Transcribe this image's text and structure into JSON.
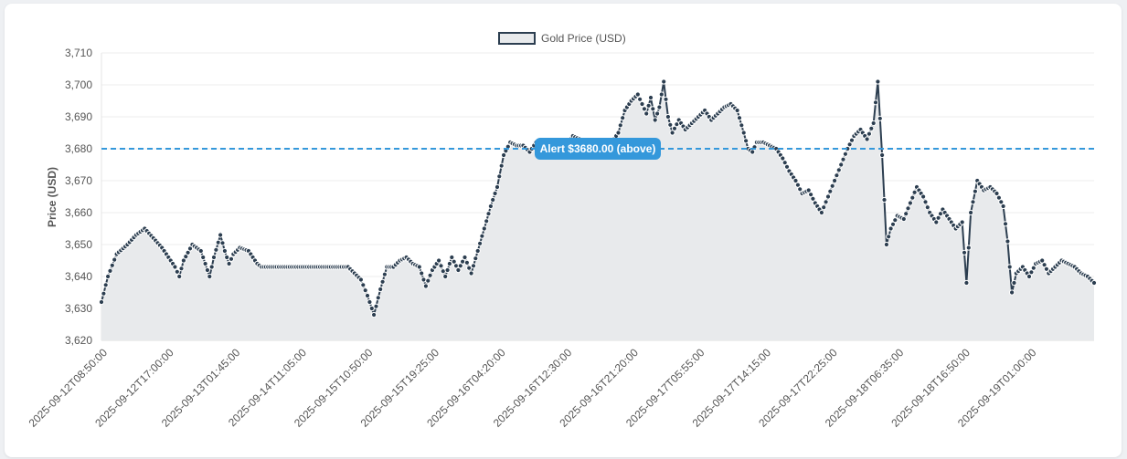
{
  "colors": {
    "line": "#2c3e50",
    "area_fill": "#e8eaec",
    "threshold": "#3498db",
    "grid": "#ececec",
    "axis_text": "#555555",
    "marker_fill": "#ffffff"
  },
  "chart_data": {
    "type": "line",
    "legend": {
      "label": "Gold Price (USD)",
      "position": "top-center"
    },
    "ylabel": "Price (USD)",
    "xlabel": "",
    "ylim": [
      3620,
      3710
    ],
    "yticks": [
      3620,
      3630,
      3640,
      3650,
      3660,
      3670,
      3680,
      3690,
      3700,
      3710
    ],
    "ytick_labels": [
      "3,620",
      "3,630",
      "3,640",
      "3,650",
      "3,660",
      "3,670",
      "3,680",
      "3,690",
      "3,700",
      "3,710"
    ],
    "xticks": [
      "2025-09-12T08:50:00",
      "2025-09-12T17:00:00",
      "2025-09-13T01:45:00",
      "2025-09-14T11:05:00",
      "2025-09-15T10:50:00",
      "2025-09-15T19:25:00",
      "2025-09-16T04:20:00",
      "2025-09-16T12:30:00",
      "2025-09-16T21:20:00",
      "2025-09-17T05:55:00",
      "2025-09-17T14:15:00",
      "2025-09-17T22:25:00",
      "2025-09-18T06:35:00",
      "2025-09-18T16:50:00",
      "2025-09-19T01:00:00"
    ],
    "grid": true,
    "threshold": {
      "value": 3680,
      "label": "Alert $3680.00 (above)",
      "style": "dashed"
    },
    "series": [
      {
        "name": "Gold Price (USD)",
        "fill": true,
        "markers": true,
        "keypoints": [
          [
            0,
            3632
          ],
          [
            3,
            3640
          ],
          [
            7,
            3647
          ],
          [
            12,
            3650
          ],
          [
            16,
            3653
          ],
          [
            20,
            3655
          ],
          [
            24,
            3652
          ],
          [
            28,
            3649
          ],
          [
            31,
            3646
          ],
          [
            34,
            3643
          ],
          [
            36,
            3640
          ],
          [
            38,
            3645
          ],
          [
            42,
            3650
          ],
          [
            46,
            3648
          ],
          [
            48,
            3644
          ],
          [
            50,
            3640
          ],
          [
            52,
            3646
          ],
          [
            55,
            3653
          ],
          [
            57,
            3648
          ],
          [
            59,
            3644
          ],
          [
            61,
            3647
          ],
          [
            64,
            3649
          ],
          [
            68,
            3648
          ],
          [
            72,
            3644
          ],
          [
            74,
            3643
          ],
          [
            90,
            3643
          ],
          [
            114,
            3643
          ],
          [
            117,
            3641
          ],
          [
            120,
            3639
          ],
          [
            123,
            3634
          ],
          [
            126,
            3628
          ],
          [
            129,
            3636
          ],
          [
            132,
            3643
          ],
          [
            135,
            3643
          ],
          [
            138,
            3645
          ],
          [
            141,
            3646
          ],
          [
            144,
            3644
          ],
          [
            147,
            3643
          ],
          [
            150,
            3637
          ],
          [
            153,
            3642
          ],
          [
            156,
            3645
          ],
          [
            159,
            3640
          ],
          [
            162,
            3646
          ],
          [
            165,
            3642
          ],
          [
            168,
            3646
          ],
          [
            171,
            3641
          ],
          [
            174,
            3648
          ],
          [
            177,
            3655
          ],
          [
            180,
            3662
          ],
          [
            183,
            3668
          ],
          [
            186,
            3678
          ],
          [
            189,
            3682
          ],
          [
            192,
            3681
          ],
          [
            195,
            3681
          ],
          [
            198,
            3679
          ],
          [
            201,
            3682
          ],
          [
            204,
            3680
          ],
          [
            207,
            3679
          ],
          [
            210,
            3679
          ],
          [
            213,
            3678
          ],
          [
            215,
            3681
          ],
          [
            218,
            3684
          ],
          [
            221,
            3683
          ],
          [
            224,
            3680
          ],
          [
            227,
            3679
          ],
          [
            230,
            3678
          ],
          [
            233,
            3680
          ],
          [
            236,
            3682
          ],
          [
            239,
            3685
          ],
          [
            242,
            3692
          ],
          [
            245,
            3695
          ],
          [
            248,
            3697
          ],
          [
            250,
            3694
          ],
          [
            252,
            3691
          ],
          [
            254,
            3696
          ],
          [
            256,
            3689
          ],
          [
            258,
            3693
          ],
          [
            260,
            3701
          ],
          [
            262,
            3690
          ],
          [
            264,
            3685
          ],
          [
            267,
            3689
          ],
          [
            270,
            3686
          ],
          [
            273,
            3688
          ],
          [
            276,
            3690
          ],
          [
            279,
            3692
          ],
          [
            282,
            3689
          ],
          [
            285,
            3691
          ],
          [
            288,
            3693
          ],
          [
            291,
            3694
          ],
          [
            294,
            3692
          ],
          [
            297,
            3685
          ],
          [
            299,
            3680
          ],
          [
            301,
            3679
          ],
          [
            303,
            3682
          ],
          [
            306,
            3682
          ],
          [
            309,
            3681
          ],
          [
            312,
            3680
          ],
          [
            315,
            3677
          ],
          [
            318,
            3673
          ],
          [
            321,
            3670
          ],
          [
            324,
            3666
          ],
          [
            327,
            3667
          ],
          [
            330,
            3663
          ],
          [
            333,
            3660
          ],
          [
            336,
            3665
          ],
          [
            339,
            3670
          ],
          [
            342,
            3675
          ],
          [
            345,
            3680
          ],
          [
            348,
            3684
          ],
          [
            351,
            3686
          ],
          [
            354,
            3683
          ],
          [
            357,
            3688
          ],
          [
            359,
            3701
          ],
          [
            361,
            3678
          ],
          [
            363,
            3650
          ],
          [
            365,
            3655
          ],
          [
            368,
            3659
          ],
          [
            371,
            3658
          ],
          [
            374,
            3663
          ],
          [
            377,
            3668
          ],
          [
            380,
            3665
          ],
          [
            383,
            3660
          ],
          [
            386,
            3657
          ],
          [
            389,
            3661
          ],
          [
            392,
            3658
          ],
          [
            395,
            3655
          ],
          [
            398,
            3657
          ],
          [
            400,
            3638
          ],
          [
            402,
            3660
          ],
          [
            405,
            3670
          ],
          [
            408,
            3667
          ],
          [
            411,
            3668
          ],
          [
            414,
            3666
          ],
          [
            417,
            3662
          ],
          [
            419,
            3651
          ],
          [
            421,
            3635
          ],
          [
            423,
            3641
          ],
          [
            426,
            3643
          ],
          [
            429,
            3640
          ],
          [
            432,
            3644
          ],
          [
            435,
            3645
          ],
          [
            438,
            3641
          ],
          [
            441,
            3643
          ],
          [
            444,
            3645
          ],
          [
            447,
            3644
          ],
          [
            450,
            3643
          ],
          [
            453,
            3641
          ],
          [
            456,
            3640
          ],
          [
            459,
            3638
          ]
        ]
      }
    ]
  }
}
